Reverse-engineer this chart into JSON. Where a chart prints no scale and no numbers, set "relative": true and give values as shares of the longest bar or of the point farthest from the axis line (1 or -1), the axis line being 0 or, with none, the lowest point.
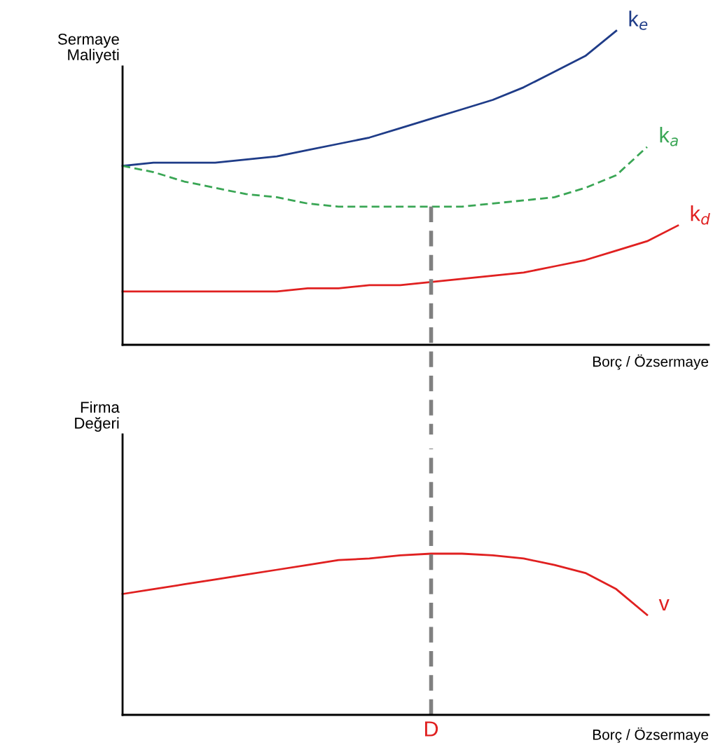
{
  "chart_data": [
    {
      "type": "line",
      "relative": true,
      "ylabel": "Sermaye\nMaliyeti",
      "xlabel": "Borç / Özsermaye",
      "categories": [
        null,
        null,
        null,
        null,
        null,
        null,
        null,
        null,
        null,
        null,
        null,
        null,
        null,
        null,
        null,
        null,
        null,
        null,
        null,
        null
      ],
      "series": [
        {
          "name": "k$_{e}$",
          "color": "#1f3c88",
          "line_style": "solid",
          "values": [
            0.57,
            0.58,
            0.58,
            0.58,
            0.59,
            0.6,
            0.62,
            0.64,
            0.66,
            0.69,
            0.72,
            0.75,
            0.78,
            0.82,
            0.87,
            0.92,
            1.0,
            null,
            null,
            null
          ]
        },
        {
          "name": "k$_{a}$",
          "color": "#3aa655",
          "line_style": "dashed",
          "values": [
            0.57,
            0.55,
            0.52,
            0.5,
            0.48,
            0.47,
            0.45,
            0.44,
            0.44,
            0.44,
            0.44,
            0.44,
            0.45,
            0.46,
            0.47,
            0.5,
            0.54,
            0.63,
            null,
            null
          ]
        },
        {
          "name": "k$_{d}$",
          "color": "#e02020",
          "line_style": "solid",
          "values": [
            0.17,
            0.17,
            0.17,
            0.17,
            0.17,
            0.17,
            0.18,
            0.18,
            0.19,
            0.19,
            0.2,
            0.21,
            0.22,
            0.23,
            0.25,
            0.27,
            0.3,
            0.33,
            0.38,
            null
          ]
        }
      ]
    },
    {
      "type": "line",
      "relative": true,
      "ylabel": "Firma\nDeğeri",
      "xlabel": "Borç / Özsermaye",
      "categories": [
        null,
        null,
        null,
        null,
        null,
        null,
        null,
        null,
        null,
        null,
        null,
        null,
        null,
        null,
        null,
        null,
        null,
        null,
        null,
        null
      ],
      "series": [
        {
          "name": "v",
          "color": "#e02020",
          "line_style": "solid",
          "values": [
            0.75,
            0.78,
            0.81,
            0.84,
            0.87,
            0.9,
            0.93,
            0.96,
            0.97,
            0.99,
            1.0,
            1.0,
            0.99,
            0.97,
            0.93,
            0.88,
            0.78,
            0.62,
            null,
            null
          ]
        }
      ],
      "annotations": [
        "D"
      ]
    }
  ]
}
